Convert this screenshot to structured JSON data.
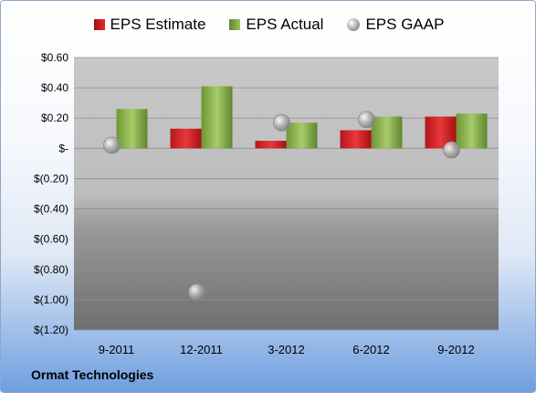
{
  "company": "Ormat Technologies",
  "colors": {
    "estimate": "#d92023",
    "actual": "#8bb24e",
    "gaap": "#a0a0a0"
  },
  "chart_data": {
    "type": "bar",
    "title": "",
    "xlabel": "",
    "ylabel": "",
    "categories": [
      "9-2011",
      "12-2011",
      "3-2012",
      "6-2012",
      "9-2012"
    ],
    "series": [
      {
        "name": "EPS Estimate",
        "kind": "bar",
        "values": [
          null,
          0.13,
          0.05,
          0.12,
          0.21
        ]
      },
      {
        "name": "EPS Actual",
        "kind": "bar",
        "values": [
          0.26,
          0.41,
          0.17,
          0.21,
          0.23
        ]
      },
      {
        "name": "EPS GAAP",
        "kind": "point",
        "values": [
          0.02,
          -0.95,
          0.17,
          0.19,
          -0.01
        ]
      }
    ],
    "ylim": [
      -1.2,
      0.6
    ],
    "yticks": [
      0.6,
      0.4,
      0.2,
      0,
      -0.2,
      -0.4,
      -0.6,
      -0.8,
      -1.0,
      -1.2
    ],
    "ytick_labels": [
      "$0.60",
      "$0.40",
      "$0.20",
      "$-",
      "$(0.20)",
      "$(0.40)",
      "$(0.60)",
      "$(0.80)",
      "$(1.00)",
      "$(1.20)"
    ],
    "grid": true,
    "legend_position": "top"
  }
}
